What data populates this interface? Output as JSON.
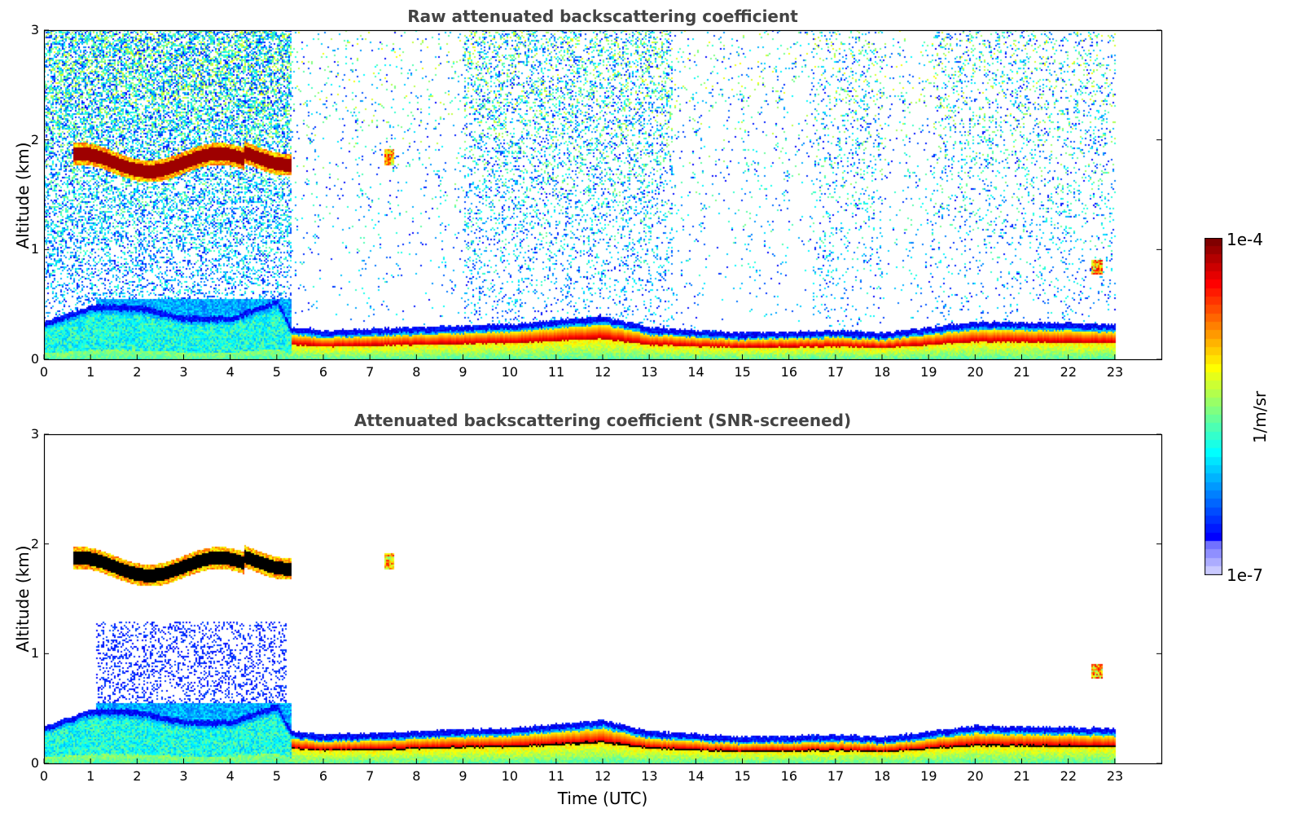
{
  "chart_data": [
    {
      "type": "heatmap",
      "title": "Raw attenuated backscattering coefficient",
      "xlabel": "",
      "ylabel": "Altitude (km)",
      "xlim": [
        0,
        24
      ],
      "ylim": [
        0,
        3
      ],
      "xticks": [
        "0",
        "1",
        "2",
        "3",
        "4",
        "5",
        "6",
        "7",
        "8",
        "9",
        "10",
        "11",
        "12",
        "13",
        "14",
        "15",
        "16",
        "17",
        "18",
        "19",
        "20",
        "21",
        "22",
        "23"
      ],
      "yticks": [
        "0",
        "1",
        "2",
        "3"
      ],
      "grid": false,
      "data_end_time": 23,
      "features": {
        "surface_layer_top_km": [
          [
            0,
            0.3
          ],
          [
            1,
            0.45
          ],
          [
            2,
            0.45
          ],
          [
            3,
            0.35
          ],
          [
            4,
            0.35
          ],
          [
            5,
            0.5
          ],
          [
            5.3,
            0.25
          ],
          [
            6,
            0.22
          ],
          [
            8,
            0.25
          ],
          [
            10,
            0.28
          ],
          [
            12,
            0.35
          ],
          [
            13,
            0.25
          ],
          [
            15,
            0.2
          ],
          [
            17,
            0.22
          ],
          [
            18,
            0.2
          ],
          [
            20,
            0.3
          ],
          [
            23,
            0.28
          ]
        ],
        "cloud_layer": {
          "time_start": 0.6,
          "time_end": 5.3,
          "altitude_km": 1.8
        },
        "small_cloud_patches": [
          {
            "time": 7.4,
            "altitude_km": 1.85
          },
          {
            "time": 22.6,
            "altitude_km": 0.85
          }
        ]
      }
    },
    {
      "type": "heatmap",
      "title": "Attenuated backscattering coefficient (SNR-screened)",
      "xlabel": "Time (UTC)",
      "ylabel": "Altitude (km)",
      "xlim": [
        0,
        24
      ],
      "ylim": [
        0,
        3
      ],
      "xticks": [
        "0",
        "1",
        "2",
        "3",
        "4",
        "5",
        "6",
        "7",
        "8",
        "9",
        "10",
        "11",
        "12",
        "13",
        "14",
        "15",
        "16",
        "17",
        "18",
        "19",
        "20",
        "21",
        "22",
        "23"
      ],
      "yticks": [
        "0",
        "1",
        "2",
        "3"
      ],
      "grid": false,
      "data_end_time": 23
    }
  ],
  "colorbar": {
    "label": "1/m/sr",
    "max_label": "1e-4",
    "min_label": "1e-7",
    "scale": "log",
    "colormap": "jet",
    "masked_color": "#000000"
  }
}
